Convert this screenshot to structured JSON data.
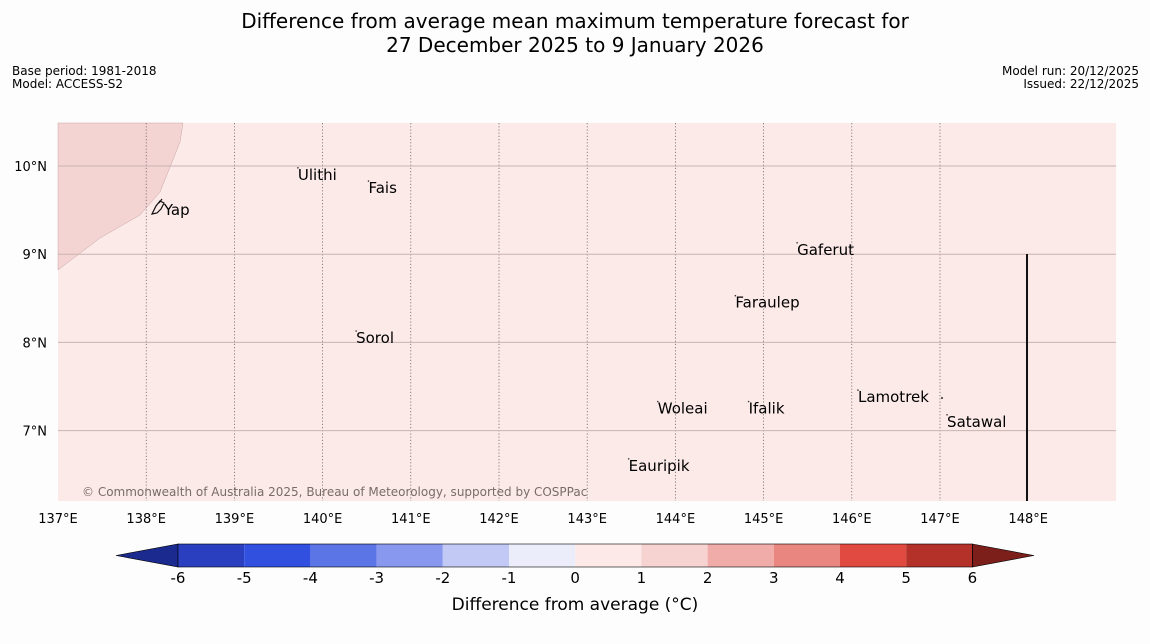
{
  "title": {
    "line1": "Difference from average mean maximum temperature forecast for",
    "line2": "27 December 2025 to 9 January 2026"
  },
  "meta_left": {
    "base_period": "Base period: 1981-2018",
    "model": "Model: ACCESS-S2"
  },
  "meta_right": {
    "model_run": "Model run: 20/12/2025",
    "issued": "Issued: 22/12/2025"
  },
  "map": {
    "lon_labels": [
      "137°E",
      "138°E",
      "139°E",
      "140°E",
      "141°E",
      "142°E",
      "143°E",
      "144°E",
      "145°E",
      "146°E",
      "147°E",
      "148°E"
    ],
    "lat_labels": [
      "10°N",
      "9°N",
      "8°N",
      "7°N"
    ],
    "background_color": "#fbeae8",
    "land_color": "#f4d4d3",
    "places": [
      {
        "name": "Yap",
        "lon": 138.2,
        "lat": 9.5
      },
      {
        "name": "Ulithi",
        "lon": 139.72,
        "lat": 9.9
      },
      {
        "name": "Fais",
        "lon": 140.52,
        "lat": 9.75
      },
      {
        "name": "Gaferut",
        "lon": 145.38,
        "lat": 9.05
      },
      {
        "name": "Faraulep",
        "lon": 144.68,
        "lat": 8.45
      },
      {
        "name": "Sorol",
        "lon": 140.38,
        "lat": 8.05
      },
      {
        "name": "Lamotrek",
        "lon": 146.07,
        "lat": 7.38
      },
      {
        "name": "Woleai",
        "lon": 143.8,
        "lat": 7.25
      },
      {
        "name": "Ifalik",
        "lon": 144.83,
        "lat": 7.25
      },
      {
        "name": "Satawal",
        "lon": 147.08,
        "lat": 7.1
      },
      {
        "name": "Eauripik",
        "lon": 143.47,
        "lat": 6.6
      }
    ],
    "copyright": "© Commonwealth of Australia 2025, Bureau of Meteorology, supported by COSPPac"
  },
  "colorbar": {
    "ticks": [
      "-6",
      "-5",
      "-4",
      "-3",
      "-2",
      "-1",
      "0",
      "1",
      "2",
      "3",
      "4",
      "5",
      "6"
    ],
    "colors": [
      "#1a2a8f",
      "#2a3fbf",
      "#3150e0",
      "#5b74e6",
      "#8898ef",
      "#c2c9f5",
      "#ebedfb",
      "#fde9e8",
      "#f6d2d1",
      "#efaca8",
      "#e98680",
      "#e04a40",
      "#b4312a",
      "#7c1e1a"
    ],
    "label": "Difference from average (°C)"
  }
}
